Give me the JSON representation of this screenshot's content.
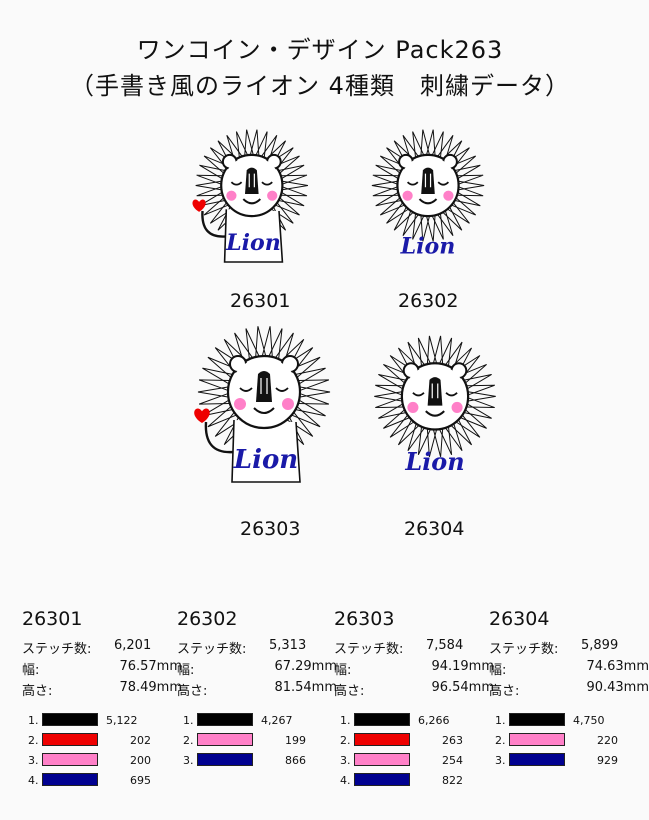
{
  "title": {
    "line1": "ワンコイン・デザイン Pack263",
    "line2": "（手書き風のライオン 4種類　刺繍データ）"
  },
  "designs": [
    {
      "code": "26301",
      "lion_text": "Lion",
      "heart": true,
      "body": true
    },
    {
      "code": "26302",
      "lion_text": "Lion",
      "heart": false,
      "body": false
    },
    {
      "code": "26303",
      "lion_text": "Lion",
      "heart": true,
      "body": true
    },
    {
      "code": "26304",
      "lion_text": "Lion",
      "heart": false,
      "body": false
    }
  ],
  "labels": {
    "stitches": "ステッチ数:",
    "width": "幅:",
    "height": "高さ:"
  },
  "specs": [
    {
      "code": "26301",
      "stitches": "6,201",
      "width": "76.57mm",
      "height": "78.49mm",
      "colors": [
        {
          "no": "1.",
          "hex": "#000000",
          "count": "5,122"
        },
        {
          "no": "2.",
          "hex": "#ee0000",
          "count": "202"
        },
        {
          "no": "3.",
          "hex": "#ff80c8",
          "count": "200"
        },
        {
          "no": "4.",
          "hex": "#000090",
          "count": "695"
        }
      ]
    },
    {
      "code": "26302",
      "stitches": "5,313",
      "width": "67.29mm",
      "height": "81.54mm",
      "colors": [
        {
          "no": "1.",
          "hex": "#000000",
          "count": "4,267"
        },
        {
          "no": "2.",
          "hex": "#ff80c8",
          "count": "199"
        },
        {
          "no": "3.",
          "hex": "#000090",
          "count": "866"
        }
      ]
    },
    {
      "code": "26303",
      "stitches": "7,584",
      "width": "94.19mm",
      "height": "96.54mm",
      "colors": [
        {
          "no": "1.",
          "hex": "#000000",
          "count": "6,266"
        },
        {
          "no": "2.",
          "hex": "#ee0000",
          "count": "263"
        },
        {
          "no": "3.",
          "hex": "#ff80c8",
          "count": "254"
        },
        {
          "no": "4.",
          "hex": "#000090",
          "count": "822"
        }
      ]
    },
    {
      "code": "26304",
      "stitches": "5,899",
      "width": "74.63mm",
      "height": "90.43mm",
      "colors": [
        {
          "no": "1.",
          "hex": "#000000",
          "count": "4,750"
        },
        {
          "no": "2.",
          "hex": "#ff80c8",
          "count": "220"
        },
        {
          "no": "3.",
          "hex": "#000090",
          "count": "929"
        }
      ]
    }
  ]
}
